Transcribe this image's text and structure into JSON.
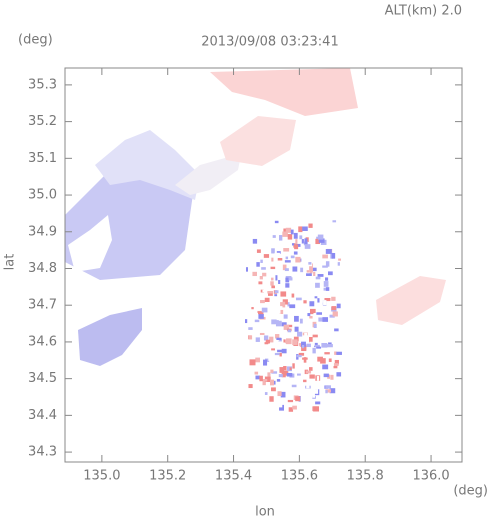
{
  "chart_data": {
    "type": "map",
    "title": "2013/09/08 03:23:41",
    "annotation": "ALT(km) 2.0",
    "ylabel": "lat",
    "xlabel": "lon",
    "yunit": "(deg)",
    "xunit": "(deg)",
    "xlim": [
      134.888,
      136.094
    ],
    "ylim": [
      34.273,
      35.346
    ],
    "xticks": [
      {
        "value": 135,
        "label": "135.0"
      },
      135.2,
      135.4,
      135.6,
      135.8,
      {
        "value": 136,
        "label": "136.0"
      }
    ],
    "yticks": [
      34.3,
      34.4,
      34.5,
      34.6,
      34.7,
      34.8,
      34.9,
      {
        "value": 35,
        "label": "35.0"
      },
      35.1,
      35.2,
      35.3
    ]
  }
}
